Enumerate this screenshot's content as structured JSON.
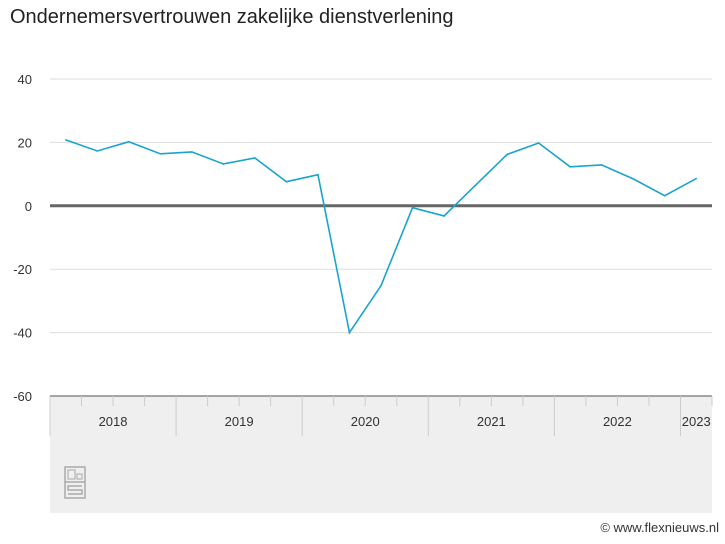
{
  "chart_data": {
    "type": "line",
    "title": "Ondernemersvertrouwen zakelijke dienstverlening",
    "x": [
      "2018Q1",
      "2018Q2",
      "2018Q3",
      "2018Q4",
      "2019Q1",
      "2019Q2",
      "2019Q3",
      "2019Q4",
      "2020Q1",
      "2020Q2",
      "2020Q3",
      "2020Q4",
      "2021Q1",
      "2021Q2",
      "2021Q3",
      "2021Q4",
      "2022Q1",
      "2022Q2",
      "2022Q3",
      "2022Q4",
      "2023Q1"
    ],
    "values": [
      20.8,
      17.3,
      20.2,
      16.4,
      17.0,
      13.2,
      15.1,
      7.6,
      9.8,
      -40.0,
      -25.2,
      -0.6,
      -3.2,
      6.5,
      16.2,
      19.8,
      12.3,
      12.9,
      8.5,
      3.2,
      8.6
    ],
    "ylim": [
      -60,
      40
    ],
    "yticks": [
      "40",
      "20",
      "0",
      "-20",
      "-40",
      "-60"
    ],
    "year_labels": [
      "2018",
      "2019",
      "2020",
      "2021",
      "2022",
      "2023"
    ],
    "grid": true,
    "line_color": "#1aa3cf",
    "zero_line_color": "#666666"
  },
  "credit": "© www.flexnieuws.nl",
  "logo": "cbs"
}
